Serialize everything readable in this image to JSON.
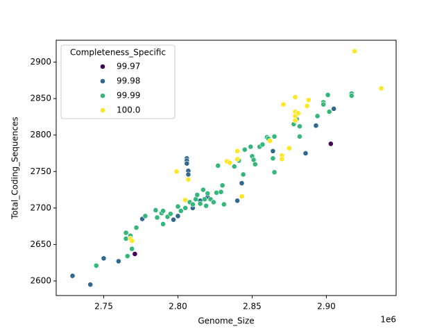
{
  "chart_data": {
    "type": "scatter",
    "xlabel": "Genome_Size",
    "ylabel": "Total_Coding_Sequences",
    "x_offset_label": "1e6",
    "legend_title": "Completeness_Specific",
    "legend": "upper left",
    "xlim": [
      2718000,
      2947000
    ],
    "ylim": [
      2580,
      2930
    ],
    "xticks": [
      {
        "value": 2750000,
        "label": "2.75"
      },
      {
        "value": 2800000,
        "label": "2.80"
      },
      {
        "value": 2850000,
        "label": "2.85"
      },
      {
        "value": 2900000,
        "label": "2.90"
      }
    ],
    "yticks": [
      2600,
      2650,
      2700,
      2750,
      2800,
      2850,
      2900
    ],
    "series": [
      {
        "name": "99.97",
        "color": "#440154",
        "x": [
          2771000,
          2903000
        ],
        "values": [
          2637,
          2788
        ]
      },
      {
        "name": "99.98",
        "color": "#31688e",
        "x": [
          2729000,
          2741000,
          2750000,
          2760000,
          2776000,
          2797000,
          2806000,
          2806000,
          2806000,
          2807000,
          2807000,
          2800000,
          2810000,
          2840000,
          2843000,
          2864000,
          2886000,
          2893000,
          2905000,
          2815000,
          2820000
        ],
        "values": [
          2607,
          2595,
          2631,
          2627,
          2685,
          2684,
          2768,
          2765,
          2761,
          2751,
          2746,
          2689,
          2700,
          2710,
          2734,
          2778,
          2775,
          2813,
          2836,
          2710,
          2715
        ]
      },
      {
        "name": "99.99",
        "color": "#35b779",
        "x": [
          2745000,
          2765000,
          2765000,
          2766000,
          2768000,
          2769000,
          2772000,
          2778000,
          2785000,
          2786000,
          2789000,
          2790000,
          2790000,
          2793000,
          2795000,
          2800000,
          2802000,
          2805000,
          2808000,
          2810000,
          2812000,
          2813000,
          2815000,
          2817000,
          2818000,
          2819000,
          2820000,
          2822000,
          2824000,
          2826000,
          2827000,
          2829000,
          2830000,
          2831000,
          2838000,
          2841000,
          2844000,
          2845000,
          2849000,
          2850000,
          2851000,
          2852000,
          2855000,
          2857000,
          2860000,
          2861000,
          2864000,
          2865000,
          2865000,
          2878000,
          2880000,
          2882000,
          2882000,
          2894000,
          2898000,
          2898000,
          2901000,
          2902000,
          2917000,
          2917000
        ],
        "values": [
          2621,
          2666,
          2658,
          2634,
          2662,
          2644,
          2673,
          2689,
          2697,
          2687,
          2693,
          2696,
          2678,
          2688,
          2692,
          2702,
          2696,
          2700,
          2708,
          2705,
          2712,
          2718,
          2706,
          2725,
          2712,
          2703,
          2720,
          2712,
          2708,
          2721,
          2758,
          2722,
          2731,
          2705,
          2757,
          2765,
          2746,
          2780,
          2784,
          2771,
          2766,
          2760,
          2784,
          2787,
          2797,
          2795,
          2768,
          2749,
          2798,
          2815,
          2822,
          2812,
          2798,
          2826,
          2845,
          2842,
          2855,
          2832,
          2857,
          2854
        ]
      },
      {
        "name": "100.0",
        "color": "#fde725",
        "x": [
          2768000,
          2769000,
          2799000,
          2805000,
          2807000,
          2833000,
          2835000,
          2840000,
          2840000,
          2843000,
          2862000,
          2870000,
          2870000,
          2871000,
          2875000,
          2879000,
          2879000,
          2879000,
          2879000,
          2881000,
          2887000,
          2888000,
          2919000,
          2937000
        ],
        "values": [
          2658,
          2655,
          2750,
          2711,
          2739,
          2764,
          2762,
          2778,
          2767,
          2716,
          2792,
          2772,
          2767,
          2842,
          2782,
          2852,
          2832,
          2826,
          2820,
          2830,
          2840,
          2848,
          2915,
          2864
        ]
      }
    ]
  }
}
